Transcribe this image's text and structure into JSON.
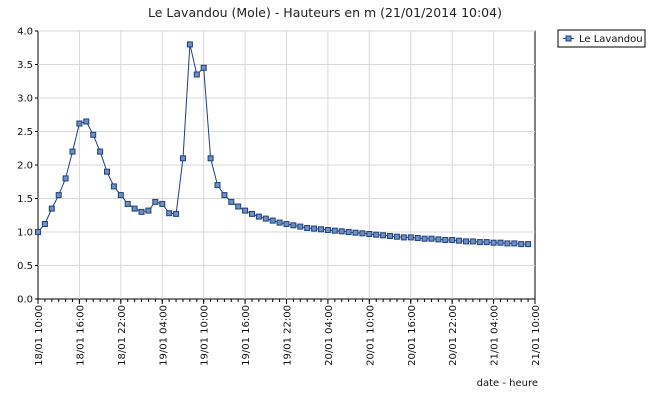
{
  "chart_data": {
    "type": "line",
    "title": "Le Lavandou (Mole) - Hauteurs en m (21/01/2014 10:04)",
    "xlabel": "date - heure",
    "ylabel": "",
    "ylim": [
      0,
      4
    ],
    "y_ticks": [
      "0.0",
      "0.5",
      "1.0",
      "1.5",
      "2.0",
      "2.5",
      "3.0",
      "3.5",
      "4.0"
    ],
    "x_ticks": [
      "18/01 10:00",
      "18/01 16:00",
      "18/01 22:00",
      "19/01 04:00",
      "19/01 10:00",
      "19/01 16:00",
      "19/01 22:00",
      "20/01 04:00",
      "20/01 10:00",
      "20/01 16:00",
      "20/01 22:00",
      "21/01 04:00",
      "21/01 10:00"
    ],
    "grid": true,
    "legend_position": "top-right",
    "series": [
      {
        "name": "Le Lavandou",
        "color": "#1f3f7f",
        "marker_fill": "#6f8fbf",
        "x_hours": [
          0,
          1,
          2,
          3,
          4,
          5,
          6,
          7,
          8,
          9,
          10,
          11,
          12,
          13,
          14,
          15,
          16,
          17,
          18,
          19,
          20,
          21,
          22,
          23,
          24,
          25,
          26,
          27,
          28,
          29,
          30,
          31,
          32,
          33,
          34,
          35,
          36,
          37,
          38,
          39,
          40,
          41,
          42,
          43,
          44,
          45,
          46,
          47,
          48,
          49,
          50,
          51,
          52,
          53,
          54,
          55,
          56,
          57,
          58,
          59,
          60,
          61,
          62,
          63,
          64,
          65,
          66,
          67,
          68,
          69,
          70,
          71
        ],
        "y": [
          1.0,
          1.12,
          1.35,
          1.55,
          1.8,
          2.2,
          2.62,
          2.65,
          2.45,
          2.2,
          1.9,
          1.68,
          1.55,
          1.42,
          1.35,
          1.3,
          1.32,
          1.45,
          1.42,
          1.28,
          1.27,
          2.1,
          3.8,
          3.35,
          3.45,
          2.1,
          1.7,
          1.55,
          1.45,
          1.38,
          1.32,
          1.27,
          1.23,
          1.2,
          1.17,
          1.14,
          1.12,
          1.1,
          1.08,
          1.06,
          1.05,
          1.04,
          1.03,
          1.02,
          1.01,
          1.0,
          0.99,
          0.98,
          0.97,
          0.96,
          0.95,
          0.94,
          0.93,
          0.92,
          0.92,
          0.91,
          0.9,
          0.9,
          0.89,
          0.88,
          0.88,
          0.87,
          0.86,
          0.86,
          0.85,
          0.85,
          0.84,
          0.84,
          0.83,
          0.83,
          0.82,
          0.82
        ]
      }
    ]
  }
}
